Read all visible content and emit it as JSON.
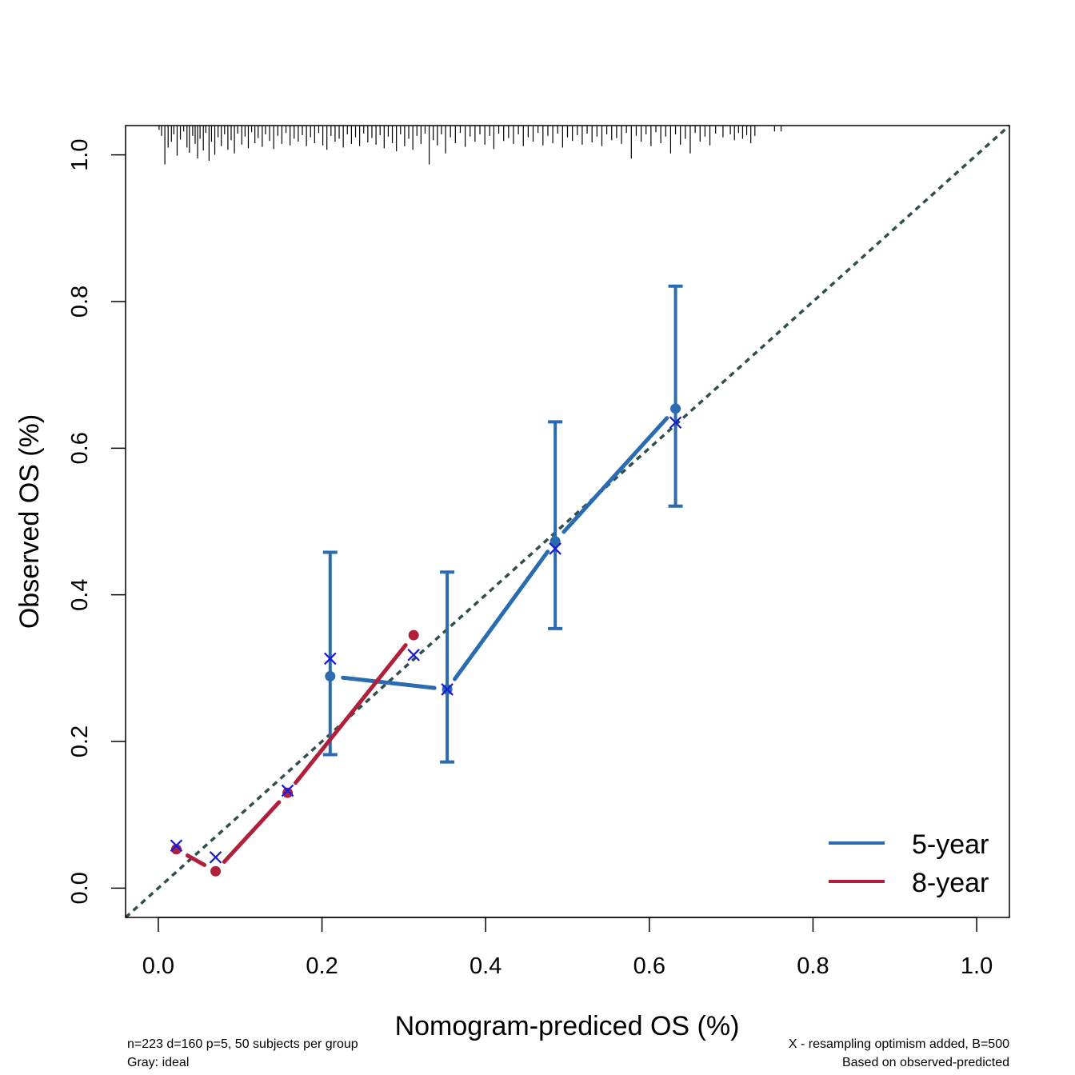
{
  "chart_data": {
    "type": "line",
    "xlabel": "Nomogram-prediced OS (%)",
    "ylabel": "Observed OS (%)",
    "xlim": [
      -0.04,
      1.04
    ],
    "ylim": [
      -0.04,
      1.04
    ],
    "xticks": [
      "0.0",
      "0.2",
      "0.4",
      "0.6",
      "0.8",
      "1.0"
    ],
    "yticks": [
      "0.0",
      "0.2",
      "0.4",
      "0.6",
      "0.8",
      "1.0"
    ],
    "grid": false,
    "legend_position": "bottom-right",
    "ideal_line": {
      "color": "#2f4f4f",
      "style": "dotted"
    },
    "series": [
      {
        "name": "5-year",
        "color": "#2b6bb0",
        "x": [
          0.21,
          0.353,
          0.485,
          0.632
        ],
        "observed": [
          0.289,
          0.271,
          0.473,
          0.654
        ],
        "corrected": [
          0.313,
          0.271,
          0.463,
          0.635
        ],
        "ci_lower": [
          0.182,
          0.172,
          0.354,
          0.521
        ],
        "ci_upper": [
          0.458,
          0.431,
          0.636,
          0.821
        ]
      },
      {
        "name": "8-year",
        "color": "#b0203a",
        "x": [
          0.022,
          0.07,
          0.158,
          0.312
        ],
        "observed": [
          0.053,
          0.023,
          0.13,
          0.345
        ],
        "corrected": [
          0.058,
          0.042,
          0.133,
          0.318
        ]
      }
    ],
    "rug": [
      {
        "x": 0.001,
        "h": 0.006
      },
      {
        "x": 0.004,
        "h": 0.014
      },
      {
        "x": 0.008,
        "h": 0.053
      },
      {
        "x": 0.012,
        "h": 0.03
      },
      {
        "x": 0.016,
        "h": 0.022
      },
      {
        "x": 0.019,
        "h": 0.012
      },
      {
        "x": 0.023,
        "h": 0.041
      },
      {
        "x": 0.027,
        "h": 0.019
      },
      {
        "x": 0.031,
        "h": 0.008
      },
      {
        "x": 0.035,
        "h": 0.03
      },
      {
        "x": 0.038,
        "h": 0.037
      },
      {
        "x": 0.042,
        "h": 0.014
      },
      {
        "x": 0.045,
        "h": 0.025
      },
      {
        "x": 0.048,
        "h": 0.045
      },
      {
        "x": 0.051,
        "h": 0.018
      },
      {
        "x": 0.055,
        "h": 0.034
      },
      {
        "x": 0.058,
        "h": 0.01
      },
      {
        "x": 0.062,
        "h": 0.048
      },
      {
        "x": 0.065,
        "h": 0.022
      },
      {
        "x": 0.069,
        "h": 0.04
      },
      {
        "x": 0.073,
        "h": 0.016
      },
      {
        "x": 0.077,
        "h": 0.028
      },
      {
        "x": 0.081,
        "h": 0.012
      },
      {
        "x": 0.085,
        "h": 0.033
      },
      {
        "x": 0.089,
        "h": 0.02
      },
      {
        "x": 0.093,
        "h": 0.038
      },
      {
        "x": 0.097,
        "h": 0.011
      },
      {
        "x": 0.102,
        "h": 0.026
      },
      {
        "x": 0.106,
        "h": 0.015
      },
      {
        "x": 0.11,
        "h": 0.031
      },
      {
        "x": 0.114,
        "h": 0.009
      },
      {
        "x": 0.118,
        "h": 0.024
      },
      {
        "x": 0.122,
        "h": 0.017
      },
      {
        "x": 0.127,
        "h": 0.029
      },
      {
        "x": 0.131,
        "h": 0.012
      },
      {
        "x": 0.136,
        "h": 0.021
      },
      {
        "x": 0.141,
        "h": 0.032
      },
      {
        "x": 0.146,
        "h": 0.014
      },
      {
        "x": 0.151,
        "h": 0.025
      },
      {
        "x": 0.156,
        "h": 0.01
      },
      {
        "x": 0.161,
        "h": 0.027
      },
      {
        "x": 0.166,
        "h": 0.018
      },
      {
        "x": 0.171,
        "h": 0.022
      },
      {
        "x": 0.176,
        "h": 0.013
      },
      {
        "x": 0.181,
        "h": 0.028
      },
      {
        "x": 0.186,
        "h": 0.016
      },
      {
        "x": 0.191,
        "h": 0.024
      },
      {
        "x": 0.196,
        "h": 0.01
      },
      {
        "x": 0.201,
        "h": 0.027
      },
      {
        "x": 0.206,
        "h": 0.033
      },
      {
        "x": 0.211,
        "h": 0.014
      },
      {
        "x": 0.216,
        "h": 0.022
      },
      {
        "x": 0.221,
        "h": 0.018
      },
      {
        "x": 0.226,
        "h": 0.03
      },
      {
        "x": 0.231,
        "h": 0.012
      },
      {
        "x": 0.236,
        "h": 0.025
      },
      {
        "x": 0.241,
        "h": 0.016
      },
      {
        "x": 0.246,
        "h": 0.028
      },
      {
        "x": 0.251,
        "h": 0.011
      },
      {
        "x": 0.256,
        "h": 0.023
      },
      {
        "x": 0.261,
        "h": 0.017
      },
      {
        "x": 0.266,
        "h": 0.026
      },
      {
        "x": 0.271,
        "h": 0.013
      },
      {
        "x": 0.276,
        "h": 0.031
      },
      {
        "x": 0.281,
        "h": 0.015
      },
      {
        "x": 0.286,
        "h": 0.024
      },
      {
        "x": 0.291,
        "h": 0.035
      },
      {
        "x": 0.296,
        "h": 0.012
      },
      {
        "x": 0.301,
        "h": 0.028
      },
      {
        "x": 0.306,
        "h": 0.018
      },
      {
        "x": 0.311,
        "h": 0.033
      },
      {
        "x": 0.316,
        "h": 0.014
      },
      {
        "x": 0.321,
        "h": 0.025
      },
      {
        "x": 0.326,
        "h": 0.011
      },
      {
        "x": 0.331,
        "h": 0.053
      },
      {
        "x": 0.336,
        "h": 0.02
      },
      {
        "x": 0.341,
        "h": 0.027
      },
      {
        "x": 0.346,
        "h": 0.012
      },
      {
        "x": 0.351,
        "h": 0.038
      },
      {
        "x": 0.357,
        "h": 0.016
      },
      {
        "x": 0.363,
        "h": 0.024
      },
      {
        "x": 0.369,
        "h": 0.01
      },
      {
        "x": 0.375,
        "h": 0.029
      },
      {
        "x": 0.381,
        "h": 0.015
      },
      {
        "x": 0.387,
        "h": 0.022
      },
      {
        "x": 0.393,
        "h": 0.012
      },
      {
        "x": 0.399,
        "h": 0.026
      },
      {
        "x": 0.405,
        "h": 0.014
      },
      {
        "x": 0.41,
        "h": 0.032
      },
      {
        "x": 0.416,
        "h": 0.011
      },
      {
        "x": 0.422,
        "h": 0.021
      },
      {
        "x": 0.428,
        "h": 0.017
      },
      {
        "x": 0.434,
        "h": 0.025
      },
      {
        "x": 0.44,
        "h": 0.012
      },
      {
        "x": 0.446,
        "h": 0.028
      },
      {
        "x": 0.452,
        "h": 0.016
      },
      {
        "x": 0.458,
        "h": 0.022
      },
      {
        "x": 0.464,
        "h": 0.01
      },
      {
        "x": 0.47,
        "h": 0.027
      },
      {
        "x": 0.476,
        "h": 0.014
      },
      {
        "x": 0.482,
        "h": 0.024
      },
      {
        "x": 0.488,
        "h": 0.011
      },
      {
        "x": 0.494,
        "h": 0.03
      },
      {
        "x": 0.5,
        "h": 0.016
      },
      {
        "x": 0.506,
        "h": 0.021
      },
      {
        "x": 0.512,
        "h": 0.013
      },
      {
        "x": 0.518,
        "h": 0.026
      },
      {
        "x": 0.524,
        "h": 0.011
      },
      {
        "x": 0.53,
        "h": 0.023
      },
      {
        "x": 0.536,
        "h": 0.015
      },
      {
        "x": 0.542,
        "h": 0.028
      },
      {
        "x": 0.548,
        "h": 0.012
      },
      {
        "x": 0.554,
        "h": 0.02
      },
      {
        "x": 0.56,
        "h": 0.017
      },
      {
        "x": 0.566,
        "h": 0.025
      },
      {
        "x": 0.572,
        "h": 0.01
      },
      {
        "x": 0.578,
        "h": 0.045
      },
      {
        "x": 0.584,
        "h": 0.014
      },
      {
        "x": 0.59,
        "h": 0.022
      },
      {
        "x": 0.596,
        "h": 0.012
      },
      {
        "x": 0.602,
        "h": 0.028
      },
      {
        "x": 0.608,
        "h": 0.009
      },
      {
        "x": 0.614,
        "h": 0.024
      },
      {
        "x": 0.62,
        "h": 0.015
      },
      {
        "x": 0.626,
        "h": 0.038
      },
      {
        "x": 0.632,
        "h": 0.012
      },
      {
        "x": 0.638,
        "h": 0.026
      },
      {
        "x": 0.644,
        "h": 0.018
      },
      {
        "x": 0.65,
        "h": 0.038
      },
      {
        "x": 0.656,
        "h": 0.01
      },
      {
        "x": 0.662,
        "h": 0.022
      },
      {
        "x": 0.668,
        "h": 0.015
      },
      {
        "x": 0.674,
        "h": 0.027
      },
      {
        "x": 0.681,
        "h": 0.011
      },
      {
        "x": 0.69,
        "h": 0.016
      },
      {
        "x": 0.699,
        "h": 0.012
      },
      {
        "x": 0.704,
        "h": 0.02
      },
      {
        "x": 0.709,
        "h": 0.01
      },
      {
        "x": 0.714,
        "h": 0.018
      },
      {
        "x": 0.719,
        "h": 0.013
      },
      {
        "x": 0.724,
        "h": 0.024
      },
      {
        "x": 0.729,
        "h": 0.014
      },
      {
        "x": 0.753,
        "h": 0.008
      },
      {
        "x": 0.761,
        "h": 0.008
      }
    ]
  },
  "axis": {
    "x_title": "Nomogram-prediced OS (%)",
    "y_title": "Observed OS (%)"
  },
  "legend": {
    "items": [
      {
        "label": "5-year",
        "color": "#2b6bb0"
      },
      {
        "label": "8-year",
        "color": "#b0203a"
      }
    ]
  },
  "notes": {
    "bottom_left_1": "n=223 d=160 p=5, 50 subjects per group",
    "bottom_left_2": "Gray: ideal",
    "bottom_right_1": "X - resampling optimism added, B=500",
    "bottom_right_2": "Based on observed-predicted"
  },
  "colors": {
    "corrected_marker": "#1a1ad6",
    "ideal_line": "#2f4f4f",
    "axis": "#000000"
  }
}
